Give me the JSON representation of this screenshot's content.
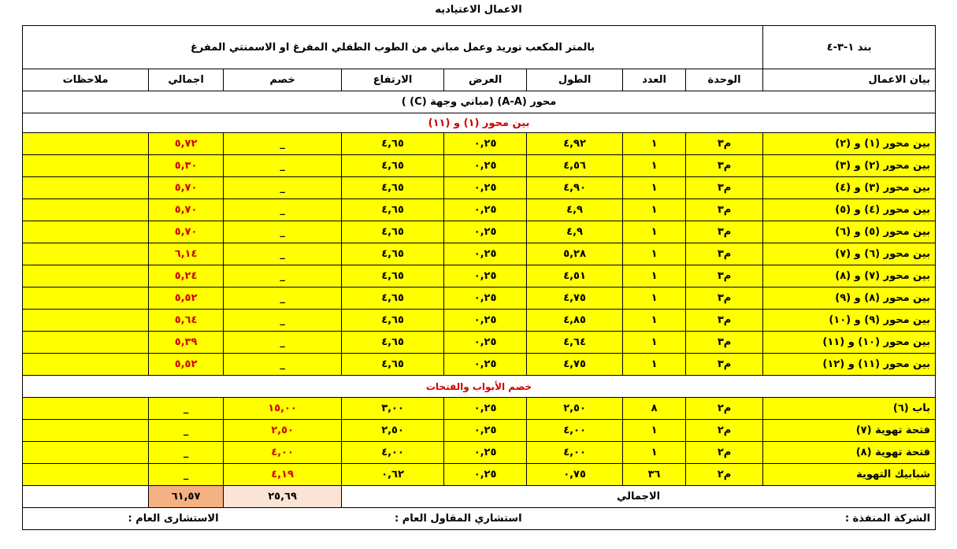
{
  "title": "الاعمال الاعتياديه",
  "header": {
    "item_no": "بند ١-٣-٤",
    "description": "بالمتر المكعب  توريد وعمل مباني من الطوب الطفلي  المفرغ  او الاسمنتي المفرغ"
  },
  "columns": [
    "بيان الاعمال",
    "الوحدة",
    "العدد",
    "الطول",
    "العرض",
    "الارتفاع",
    "خصم",
    "اجمالي",
    "ملاحظات"
  ],
  "section": "محور (A-A) (مباني وجهة (C) )",
  "subsection": "بين محور (١)  و (١١)",
  "items": [
    [
      "بين محور (١) و (٢)",
      "م٣",
      "١",
      "٤,٩٢",
      "٠,٢٥",
      "٤,٦٥",
      "_",
      "٥,٧٢"
    ],
    [
      "بين محور (٢) و (٣)",
      "م٣",
      "١",
      "٤,٥٦",
      "٠,٢٥",
      "٤,٦٥",
      "_",
      "٥,٣٠"
    ],
    [
      "بين محور (٣) و (٤)",
      "م٣",
      "١",
      "٤,٩٠",
      "٠,٢٥",
      "٤,٦٥",
      "_",
      "٥,٧٠"
    ],
    [
      "بين محور (٤) و (٥)",
      "م٣",
      "١",
      "٤,٩",
      "٠,٢٥",
      "٤,٦٥",
      "_",
      "٥,٧٠"
    ],
    [
      "بين محور (٥) و (٦)",
      "م٣",
      "١",
      "٤,٩",
      "٠,٢٥",
      "٤,٦٥",
      "_",
      "٥,٧٠"
    ],
    [
      "بين محور (٦) و (٧)",
      "م٣",
      "١",
      "٥,٢٨",
      "٠,٢٥",
      "٤,٦٥",
      "_",
      "٦,١٤"
    ],
    [
      "بين محور (٧) و (٨)",
      "م٣",
      "١",
      "٤,٥١",
      "٠,٢٥",
      "٤,٦٥",
      "_",
      "٥,٢٤"
    ],
    [
      "بين محور (٨) و (٩)",
      "م٣",
      "١",
      "٤,٧٥",
      "٠,٢٥",
      "٤,٦٥",
      "_",
      "٥,٥٢"
    ],
    [
      "بين محور (٩) و (١٠)",
      "م٣",
      "١",
      "٤,٨٥",
      "٠,٢٥",
      "٤,٦٥",
      "_",
      "٥,٦٤"
    ],
    [
      "بين محور (١٠) و (١١)",
      "م٣",
      "١",
      "٤,٦٤",
      "٠,٢٥",
      "٤,٦٥",
      "_",
      "٥,٣٩"
    ],
    [
      "بين محور (١١) و (١٢)",
      "م٣",
      "١",
      "٤,٧٥",
      "٠,٢٥",
      "٤,٦٥",
      "_",
      "٥,٥٢"
    ]
  ],
  "deduction_title": "خصم الأبواب والفتحات",
  "deductions": [
    [
      "باب (٦)",
      "م٢",
      "٨",
      "٢,٥٠",
      "٠,٢٥",
      "٣,٠٠",
      "١٥,٠٠",
      "_"
    ],
    [
      "فتحة تهوية (٧)",
      "م٢",
      "١",
      "٤,٠٠",
      "٠,٢٥",
      "٢,٥٠",
      "٢,٥٠",
      "_"
    ],
    [
      "فتحة تهوية (٨)",
      "م٢",
      "١",
      "٤,٠٠",
      "٠,٢٥",
      "٤,٠٠",
      "٤,٠٠",
      "_"
    ],
    [
      "شبابيك التهوية",
      "م٢",
      "٣٦",
      "٠,٧٥",
      "٠,٢٥",
      "٠,٦٢",
      "٤,١٩",
      "_"
    ]
  ],
  "total": {
    "label": "الاجمالي",
    "deduction": "٢٥,٦٩",
    "total": "٦١,٥٧"
  },
  "footer": {
    "contractor": "الشركة المنفذة :",
    "contractor_consultant": "استشاري المقاول العام :",
    "general_consultant": "الاستشارى العام :"
  }
}
